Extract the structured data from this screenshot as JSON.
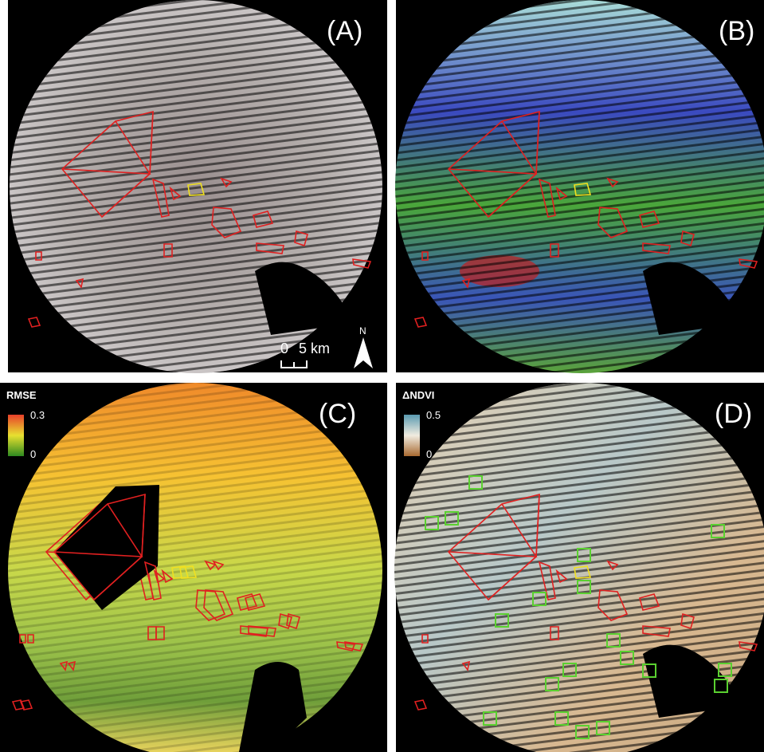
{
  "panels": {
    "a": {
      "label": "(A)",
      "scale_bar": {
        "start": "0",
        "end": "5 km"
      },
      "north_arrow": "N"
    },
    "b": {
      "label": "(B)"
    },
    "c": {
      "label": "(C)",
      "colorbar": {
        "title": "RMSE",
        "max": "0.3",
        "min": "0"
      }
    },
    "d": {
      "label": "(D)",
      "colorbar": {
        "title": "ΔNDVI",
        "max": "0.5",
        "min": "0"
      }
    }
  }
}
